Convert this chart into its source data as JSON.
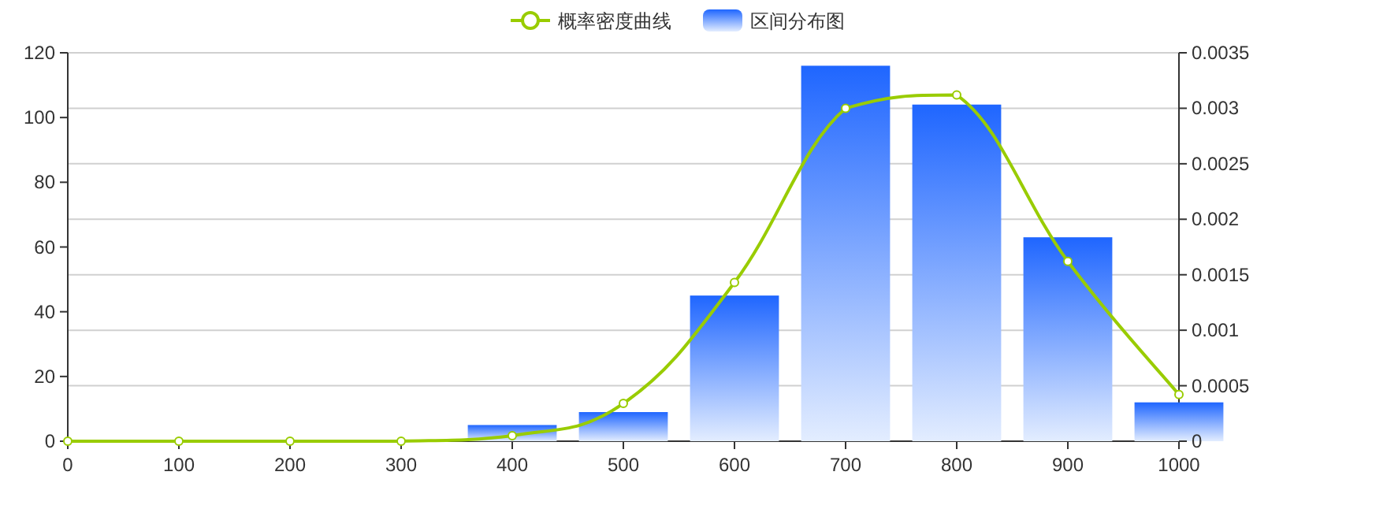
{
  "chart_data": {
    "type": "bar",
    "legend": "top",
    "grid": "y",
    "marker": "circle",
    "xlim": [
      0,
      1000
    ],
    "xticks": [
      0,
      100,
      200,
      300,
      400,
      500,
      600,
      700,
      800,
      900,
      1000
    ],
    "ylim": [
      0,
      120
    ],
    "yticks": [
      0,
      20,
      40,
      60,
      80,
      100,
      120
    ],
    "y2lim": [
      0,
      0.0035
    ],
    "y2ticks": [
      0,
      0.0005,
      0.001,
      0.0015,
      0.002,
      0.0025,
      0.003,
      0.0035
    ],
    "series": [
      {
        "name": "概率密度曲线",
        "type": "line",
        "axis": "y2",
        "color": "#99cc00",
        "x": [
          0,
          100,
          200,
          300,
          400,
          500,
          600,
          700,
          800,
          900,
          1000
        ],
        "values": [
          0,
          0,
          0,
          0,
          5e-05,
          0.00034,
          0.00143,
          0.003,
          0.00312,
          0.00162,
          0.00042
        ]
      },
      {
        "name": "区间分布图",
        "color": "#1f66ff",
        "x": [
          400,
          500,
          600,
          700,
          800,
          900,
          1000
        ],
        "values": [
          5,
          9,
          45,
          116,
          104,
          63,
          12
        ]
      }
    ]
  }
}
